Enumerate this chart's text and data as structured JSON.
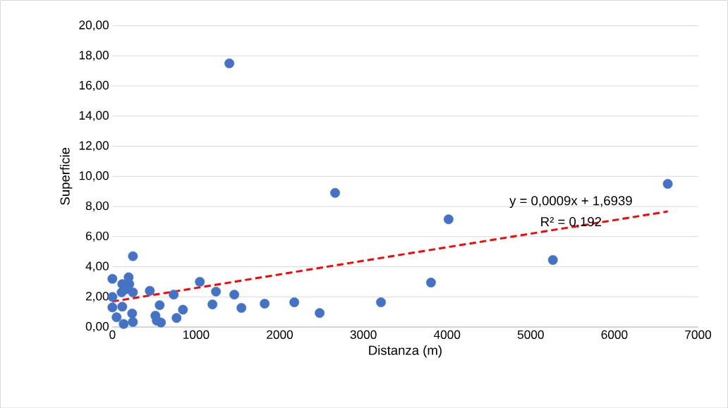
{
  "chart_data": {
    "type": "scatter",
    "xlabel": "Distanza (m)",
    "ylabel": "Superficie",
    "xlim": [
      0,
      7000
    ],
    "xticks": [
      0,
      1000,
      2000,
      3000,
      4000,
      5000,
      6000,
      7000
    ],
    "ylim": [
      0,
      20
    ],
    "yticks": [
      {
        "value": 0,
        "label": "0,00"
      },
      {
        "value": 2,
        "label": "2,00"
      },
      {
        "value": 4,
        "label": "4,00"
      },
      {
        "value": 6,
        "label": "6,00"
      },
      {
        "value": 8,
        "label": "8,00"
      },
      {
        "value": 10,
        "label": "10,00"
      },
      {
        "value": 12,
        "label": "12,00"
      },
      {
        "value": 14,
        "label": "14,00"
      },
      {
        "value": 16,
        "label": "16,00"
      },
      {
        "value": 18,
        "label": "18,00"
      },
      {
        "value": 20,
        "label": "20,00"
      }
    ],
    "grid": "y",
    "series": [
      {
        "color": "#4472c4",
        "marker": "circle",
        "x": [
          0,
          0,
          0,
          50,
          135,
          245,
          236,
          118,
          245,
          194,
          118,
          202,
          245,
          110,
          160,
          447,
          565,
          514,
          580,
          530,
          733,
          767,
          843,
          1045,
          1238,
          1196,
          1457,
          1542,
          1820,
          2174,
          2477,
          3210,
          3808,
          1398,
          2662,
          4018,
          5265,
          6638
        ],
        "values": [
          3.2,
          2.0,
          1.3,
          0.65,
          0.2,
          0.33,
          0.9,
          1.35,
          4.7,
          3.3,
          2.85,
          2.85,
          2.3,
          2.3,
          2.5,
          2.4,
          1.45,
          0.75,
          0.3,
          0.42,
          2.15,
          0.6,
          1.15,
          3.0,
          2.35,
          1.5,
          2.15,
          1.27,
          1.55,
          1.64,
          0.93,
          1.64,
          2.95,
          17.5,
          8.9,
          7.15,
          4.45,
          9.5
        ]
      },
      {
        "type": "line",
        "color": "#ff0000",
        "line_style": "dashed",
        "marker": "none",
        "x": [
          0,
          6638
        ],
        "values": [
          1.69,
          7.67
        ]
      }
    ],
    "annotations": [
      "y = 0,0009x + 1,6939",
      "R² = 0,192"
    ]
  }
}
